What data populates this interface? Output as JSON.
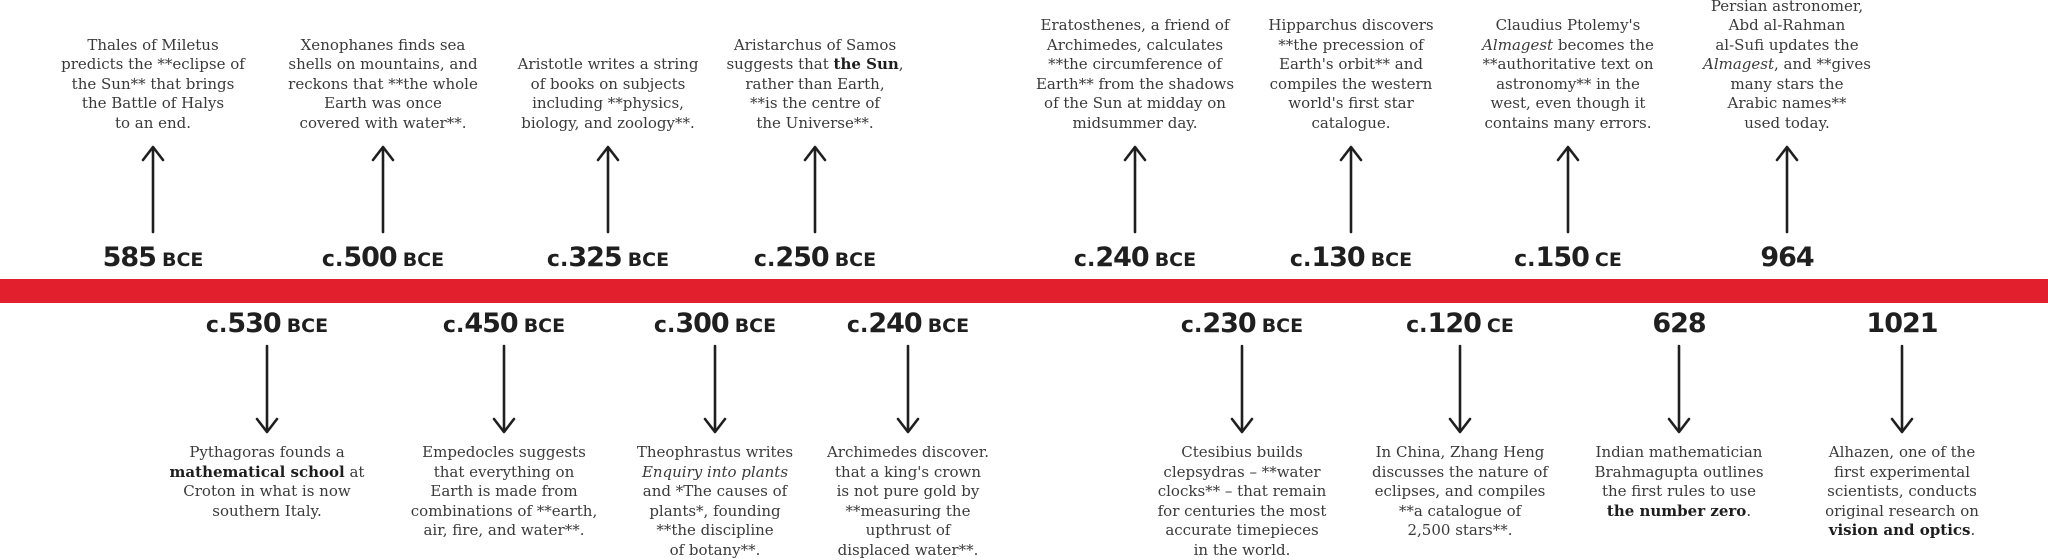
{
  "colors": {
    "timeline_band": "#e11f2d",
    "ink": "#1f1f1f",
    "text": "#3a3a3a"
  },
  "events_above": [
    {
      "prefix": "",
      "year": "585",
      "era": "BCE",
      "lines": [
        "Thales of Miletus",
        "predicts the **eclipse of",
        "the Sun** that brings",
        "the Battle of Halys",
        "to an end."
      ]
    },
    {
      "prefix": "c.",
      "year": "500",
      "era": "BCE",
      "lines": [
        "Xenophanes finds sea",
        "shells on mountains, and",
        "reckons that **the whole",
        "Earth was once",
        "covered with water**."
      ]
    },
    {
      "prefix": "c.",
      "year": "325",
      "era": "BCE",
      "lines": [
        "Aristotle writes a string",
        "of books on subjects",
        "including **physics,",
        "biology, and zoology**."
      ]
    },
    {
      "prefix": "c.",
      "year": "250",
      "era": "BCE",
      "lines": [
        "Aristarchus of Samos",
        "suggests that **the Sun**,",
        "rather than Earth,",
        "**is the centre of",
        "the Universe**."
      ]
    },
    {
      "prefix": "c.",
      "year": "240",
      "era": "BCE",
      "lines": [
        "Eratosthenes, a friend of",
        "Archimedes, calculates",
        "**the circumference of",
        "Earth** from the shadows",
        "of the Sun at midday on",
        "midsummer day."
      ]
    },
    {
      "prefix": "c.",
      "year": "130",
      "era": "BCE",
      "lines": [
        "Hipparchus discovers",
        "**the precession of",
        "Earth's orbit** and",
        "compiles the western",
        "world's first star",
        "catalogue."
      ]
    },
    {
      "prefix": "c.",
      "year": "150",
      "era": "CE",
      "lines": [
        "Claudius Ptolemy's",
        "*Almagest* becomes the",
        "**authoritative text on",
        "astronomy** in the",
        "west, even though it",
        "contains many errors."
      ]
    },
    {
      "prefix": "",
      "year": "964",
      "era": "",
      "lines": [
        "Persian astronomer,",
        "Abd al-Rahman",
        "al-Sufi updates the",
        "*Almagest*, and **gives",
        "many stars the",
        "Arabic names**",
        "used today."
      ]
    }
  ],
  "events_below": [
    {
      "prefix": "c.",
      "year": "530",
      "era": "BCE",
      "lines": [
        "Pythagoras founds a",
        "**mathematical school** at",
        "Croton in what is now",
        "southern Italy."
      ]
    },
    {
      "prefix": "c.",
      "year": "450",
      "era": "BCE",
      "lines": [
        "Empedocles suggests",
        "that everything on",
        "Earth is made from",
        "combinations of **earth,",
        "air, fire, and water**."
      ]
    },
    {
      "prefix": "c.",
      "year": "300",
      "era": "BCE",
      "lines": [
        "Theophrastus writes",
        "*Enquiry into plants*",
        "and *The causes of",
        "plants*, founding",
        "**the discipline",
        "of botany**."
      ]
    },
    {
      "prefix": "c.",
      "year": "240",
      "era": "BCE",
      "lines": [
        "Archimedes discover.",
        "that a king's crown",
        "is not pure gold by",
        "**measuring the",
        "upthrust of",
        "displaced water**."
      ]
    },
    {
      "prefix": "c.",
      "year": "230",
      "era": "BCE",
      "lines": [
        "Ctesibius builds",
        "clepsydras – **water",
        "clocks** – that remain",
        "for centuries the most",
        "accurate timepieces",
        "in the world."
      ]
    },
    {
      "prefix": "c.",
      "year": "120",
      "era": "CE",
      "lines": [
        "In China, Zhang Heng",
        "discusses the nature of",
        "eclipses, and compiles",
        "**a catalogue of",
        "2,500 stars**."
      ]
    },
    {
      "prefix": "",
      "year": "628",
      "era": "",
      "lines": [
        "Indian mathematician",
        "Brahmagupta outlines",
        "the first rules to use",
        "**the number zero**."
      ]
    },
    {
      "prefix": "",
      "year": "1021",
      "era": "",
      "lines": [
        "Alhazen, one of the",
        "first experimental",
        "scientists, conducts",
        "original research on",
        "**vision and optics**."
      ]
    }
  ]
}
